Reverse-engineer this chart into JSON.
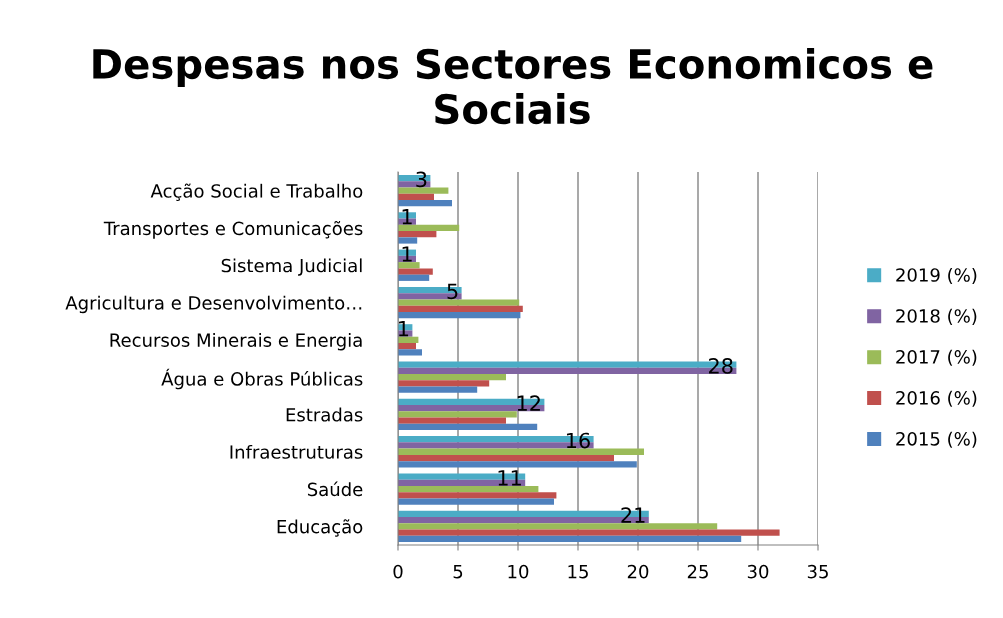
{
  "chart_data": {
    "type": "bar",
    "orientation": "horizontal",
    "title": "Despesas nos Sectores Economicos e Sociais",
    "categories": [
      "Acção Social e Trabalho",
      "Transportes e Comunicações",
      "Sistema Judicial",
      "Agricultura e Desenvolvimento…",
      "Recursos Minerais e Energia",
      "Água e Obras Públicas",
      "Estradas",
      "Infraestruturas",
      "Saúde",
      "Educação"
    ],
    "series": [
      {
        "name": "2019 (%)",
        "color": "#4bacc6",
        "values": [
          2.7,
          1.5,
          1.5,
          5.3,
          1.2,
          28.2,
          12.2,
          16.3,
          10.6,
          20.9
        ]
      },
      {
        "name": "2018 (%)",
        "color": "#8064a2",
        "values": [
          2.7,
          1.5,
          1.5,
          5.3,
          1.2,
          28.2,
          12.2,
          16.3,
          10.6,
          20.9
        ],
        "value_labels": [
          "3",
          "1",
          "1",
          "5",
          "1",
          "28",
          "12",
          "16",
          "11",
          "21"
        ]
      },
      {
        "name": "2017 (%)",
        "color": "#9bbb59",
        "values": [
          4.2,
          5.1,
          1.8,
          10.1,
          1.7,
          9.0,
          9.9,
          20.5,
          11.7,
          26.6
        ]
      },
      {
        "name": "2016 (%)",
        "color": "#c0504d",
        "values": [
          3.0,
          3.2,
          2.9,
          10.4,
          1.5,
          7.6,
          9.0,
          18.0,
          13.2,
          31.8
        ]
      },
      {
        "name": "2015 (%)",
        "color": "#4f81bd",
        "values": [
          4.5,
          1.6,
          2.6,
          10.2,
          2.0,
          6.6,
          11.6,
          19.9,
          13.0,
          28.6
        ]
      }
    ],
    "xlim": [
      0,
      35
    ],
    "xticks": [
      0,
      5,
      10,
      15,
      20,
      25,
      30,
      35
    ],
    "grid": "x",
    "legend": "right"
  }
}
